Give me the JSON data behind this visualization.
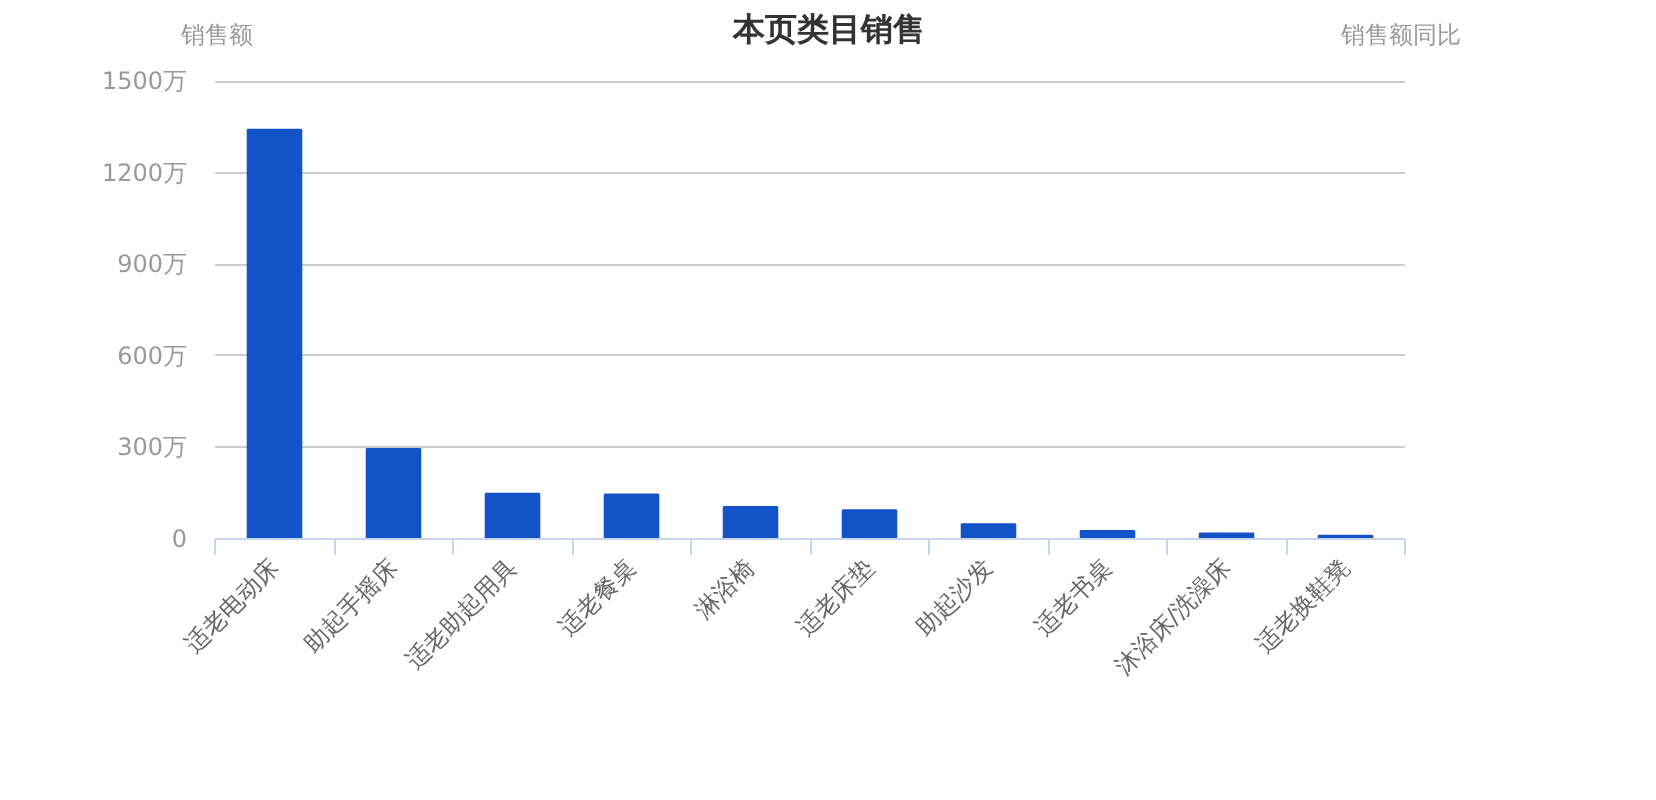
{
  "chart_data": {
    "type": "bar",
    "title": "本页类目销售",
    "ylabel": "销售额",
    "y2label": "销售额同比",
    "categories": [
      "适老电动床",
      "助起手摇床",
      "适老助起用具",
      "适老餐桌",
      "淋浴椅",
      "适老床垫",
      "助起沙发",
      "适老书桌",
      "沐浴床/洗澡床",
      "适老换鞋凳"
    ],
    "values": [
      1340,
      295,
      148,
      146,
      105,
      94,
      48,
      26,
      18,
      11
    ],
    "color": "#1254c8",
    "ylim": [
      0,
      1500
    ],
    "yticks": [
      0,
      {
        "value": 300,
        "label": "300万"
      },
      {
        "value": 600,
        "label": "600万"
      },
      {
        "value": 900,
        "label": "900万"
      },
      {
        "value": 1200,
        "label": "1200万"
      },
      {
        "value": 1500,
        "label": "1500万"
      }
    ],
    "grid": "y"
  }
}
